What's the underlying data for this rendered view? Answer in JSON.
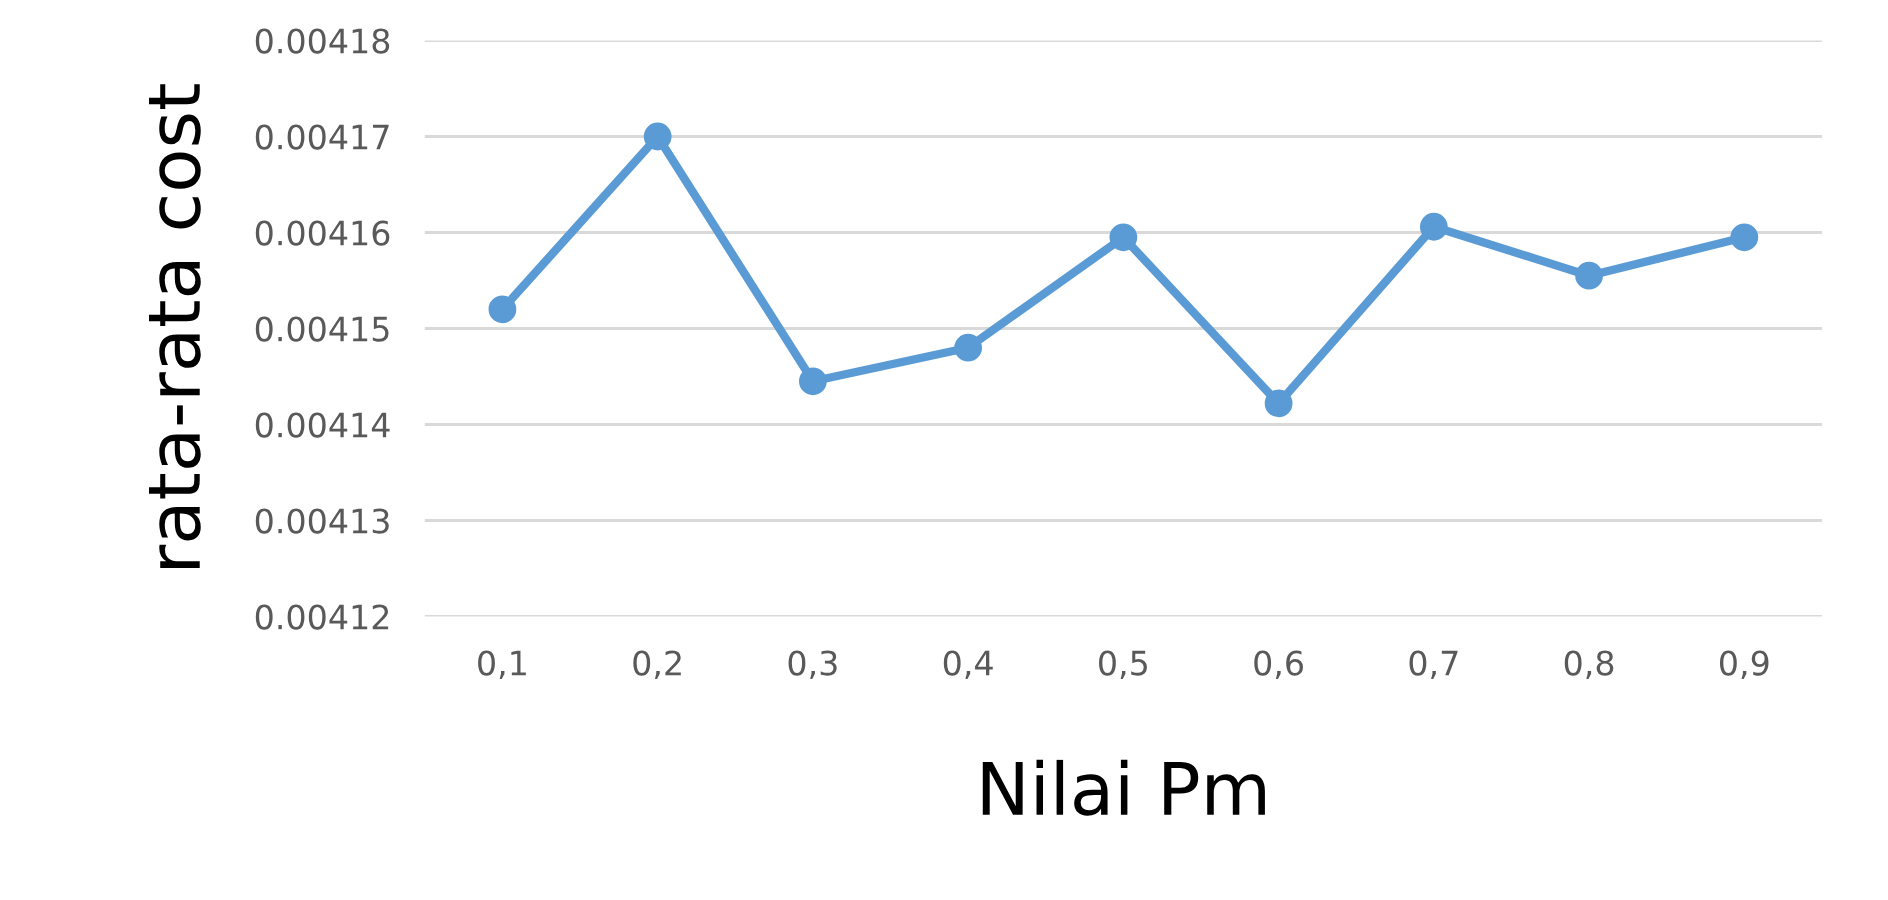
{
  "chart_data": {
    "type": "line",
    "xlabel": "Nilai Pm",
    "ylabel": "rata-rata cost",
    "categories": [
      "0,1",
      "0,2",
      "0,3",
      "0,4",
      "0,5",
      "0,6",
      "0,7",
      "0,8",
      "0,9"
    ],
    "series": [
      {
        "color": "#5b9bd5",
        "values": [
          0.004152,
          0.00417,
          0.0041445,
          0.004148,
          0.0041595,
          0.0041422,
          0.0041606,
          0.0041555,
          0.0041595
        ]
      }
    ],
    "ylim": [
      0.00412,
      0.00418
    ],
    "yticks": [
      0.00412,
      0.00413,
      0.00414,
      0.00415,
      0.00416,
      0.00417,
      0.00418
    ],
    "grid": "y",
    "marker": "circle",
    "line_style": "solid"
  }
}
